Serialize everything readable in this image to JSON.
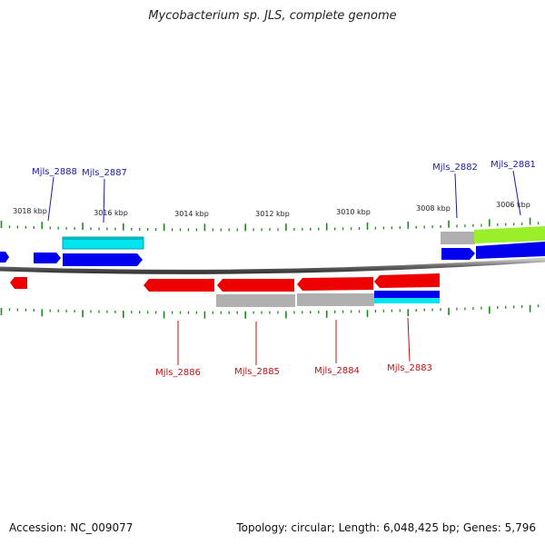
{
  "header": {
    "title": "Mycobacterium sp. JLS, complete genome"
  },
  "footer": {
    "accession": "Accession: NC_009077",
    "stats": "Topology: circular; Length: 6,048,425 bp; Genes: 5,796"
  },
  "colors": {
    "forward_cds": "#0000ee",
    "reverse_cds": "#ee0000",
    "rna_cyan": "#00e5ee",
    "gray_feature": "#b0b0b0",
    "green_feature": "#9aee2a",
    "tick": "#1a8a1a",
    "backbone": "#777777",
    "forward_label": "#1a1aa0",
    "reverse_label": "#c01010"
  },
  "scale_labels": [
    "3018 kbp",
    "3016 kbp",
    "3014 kbp",
    "3012 kbp",
    "3010 kbp",
    "3008 kbp",
    "3006 kbp"
  ],
  "forward_labels": [
    "Mjls_2888",
    "Mjls_2887",
    "Mjls_2882",
    "Mjls_2881"
  ],
  "reverse_labels": [
    "Mjls_2886",
    "Mjls_2885",
    "Mjls_2884",
    "Mjls_2883"
  ]
}
